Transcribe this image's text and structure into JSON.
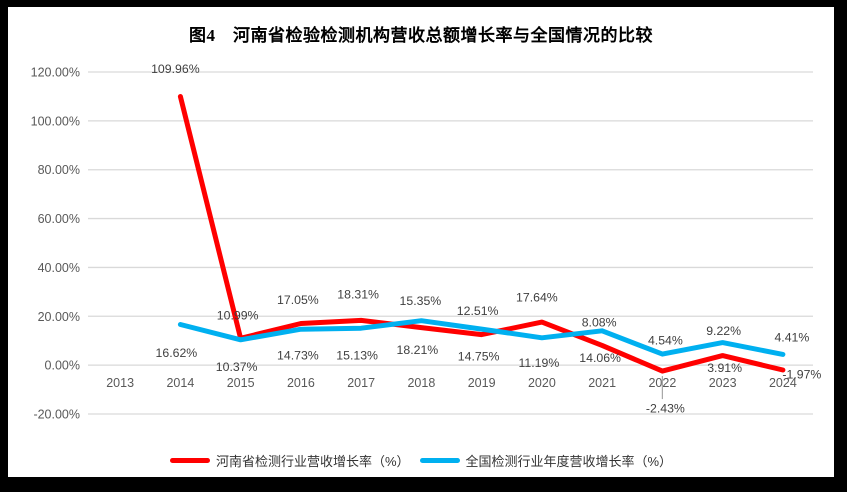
{
  "page": {
    "background_color": "#000000",
    "chart_background_color": "#FFFFFF"
  },
  "chart_data": {
    "type": "line",
    "title": "图4　河南省检验检测机构营收总额增长率与全国情况的比较",
    "categories": [
      "2013",
      "2014",
      "2015",
      "2016",
      "2017",
      "2018",
      "2019",
      "2020",
      "2021",
      "2022",
      "2023",
      "2024"
    ],
    "ylim": [
      -20,
      120
    ],
    "grid": true,
    "legend_position": "bottom",
    "gridline_color": "#D9D9D9",
    "axis_label_color": "#595959",
    "data_label_color": "#3F3F3F",
    "leader_line_color": "#A6A6A6",
    "y_axis": {
      "tick_labels": [
        "120.00%",
        "100.00%",
        "80.00%",
        "60.00%",
        "40.00%",
        "20.00%",
        "0.00%",
        "-20.00%"
      ],
      "tick_values": [
        120,
        100,
        80,
        60,
        40,
        20,
        0,
        -20
      ]
    },
    "series": [
      {
        "key": "henan",
        "name": "河南省检测行业营收增长率（%）",
        "color": "#FF0000",
        "values": [
          null,
          109.96,
          10.99,
          17.05,
          18.31,
          15.35,
          12.51,
          17.64,
          8.08,
          -2.43,
          3.91,
          -1.97
        ],
        "labels": [
          null,
          {
            "t": "109.96%",
            "dx": -5,
            "dy": -28
          },
          {
            "t": "10.99%",
            "dx": -3,
            "dy": -23
          },
          {
            "t": "17.05%",
            "dx": -3,
            "dy": -24
          },
          {
            "t": "18.31%",
            "dx": -3,
            "dy": -26
          },
          {
            "t": "15.35%",
            "dx": -1,
            "dy": -27
          },
          {
            "t": "12.51%",
            "dx": -4,
            "dy": -24
          },
          {
            "t": "17.64%",
            "dx": -5,
            "dy": -25
          },
          {
            "t": "8.08%",
            "dx": -3,
            "dy": -23
          },
          {
            "t": "-2.43%",
            "dx": 3,
            "dy": 37,
            "leader": true
          },
          {
            "t": "3.91%",
            "dx": 2,
            "dy": 12
          },
          {
            "t": "-1.97%",
            "dx": 19,
            "dy": 4
          }
        ]
      },
      {
        "key": "national",
        "name": "全国检测行业年度营收增长率（%）",
        "color": "#00B0F0",
        "values": [
          null,
          16.62,
          10.37,
          14.73,
          15.13,
          18.21,
          14.75,
          11.19,
          14.06,
          4.54,
          9.22,
          4.41
        ],
        "labels": [
          null,
          {
            "t": "16.62%",
            "dx": -4,
            "dy": 28
          },
          {
            "t": "10.37%",
            "dx": -4,
            "dy": 27
          },
          {
            "t": "14.73%",
            "dx": -3,
            "dy": 26
          },
          {
            "t": "15.13%",
            "dx": -4,
            "dy": 27
          },
          {
            "t": "18.21%",
            "dx": -4,
            "dy": 29
          },
          {
            "t": "14.75%",
            "dx": -3,
            "dy": 27
          },
          {
            "t": "11.19%",
            "dx": -3,
            "dy": 25
          },
          {
            "t": "14.06%",
            "dx": -2,
            "dy": 27
          },
          {
            "t": "4.54%",
            "dx": 3,
            "dy": -14
          },
          {
            "t": "9.22%",
            "dx": 1,
            "dy": -12
          },
          {
            "t": "4.41%",
            "dx": 9,
            "dy": -17
          }
        ]
      }
    ]
  }
}
